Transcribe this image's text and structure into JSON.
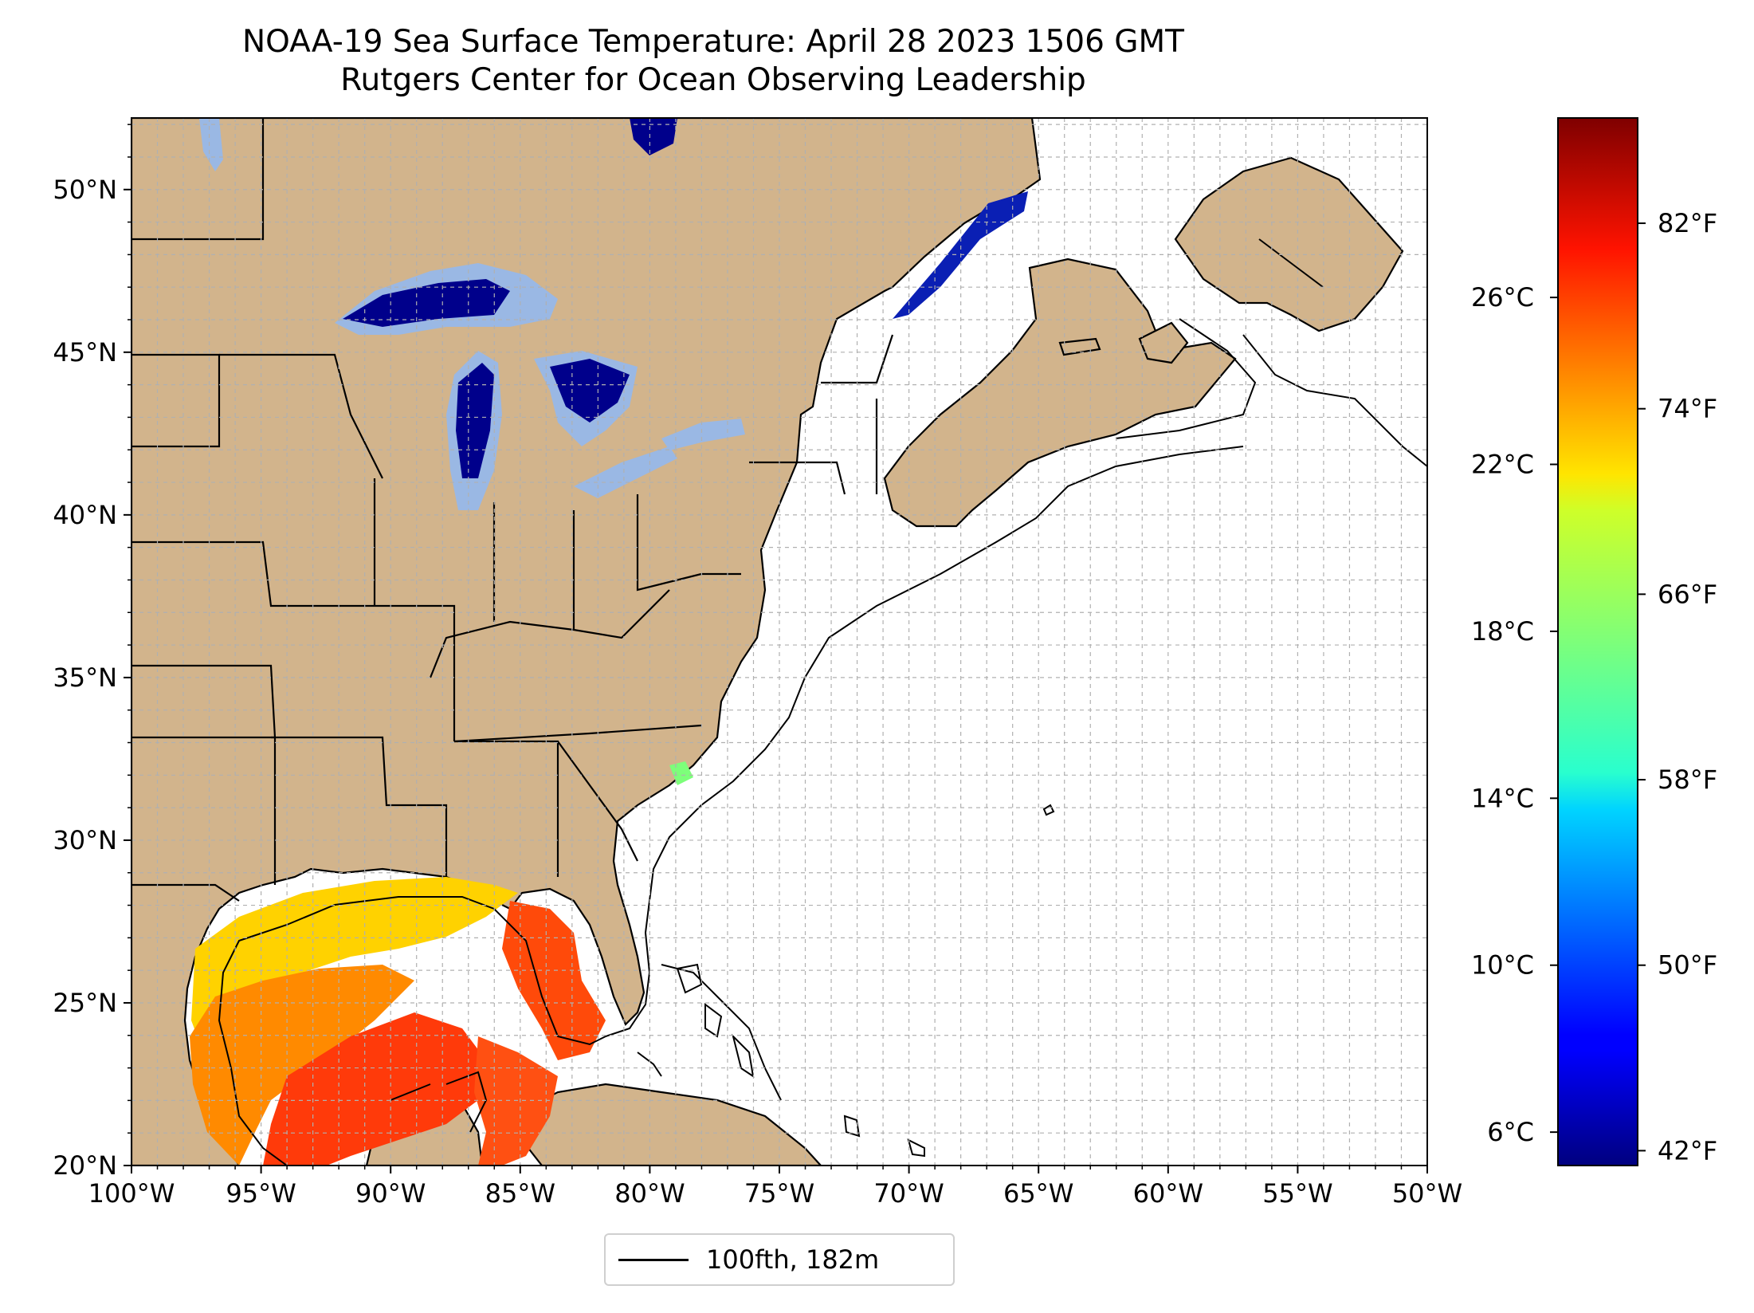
{
  "title_line1": "NOAA-19 Sea Surface Temperature: April 28 2023 1506 GMT",
  "title_line2": "Rutgers Center for Ocean Observing Leadership",
  "map": {
    "lon_range": [
      -100,
      -50
    ],
    "lat_range": [
      20,
      52.2
    ],
    "gridlines": "dashed, 1 degree",
    "x_ticks": [
      "100°W",
      "95°W",
      "90°W",
      "85°W",
      "80°W",
      "75°W",
      "70°W",
      "65°W",
      "60°W",
      "55°W",
      "50°W"
    ],
    "y_ticks": [
      "20°N",
      "25°N",
      "30°N",
      "35°N",
      "40°N",
      "45°N",
      "50°N"
    ],
    "colors": {
      "land": "#d2b48c",
      "lakes": "#9ab8e4",
      "ocean_no_data": "#ffffff",
      "coast": "#000000"
    }
  },
  "colorbar": {
    "colormap": "jet",
    "range_celsius": [
      5.2,
      30.3
    ],
    "celsius_ticks": [
      "6°C",
      "10°C",
      "14°C",
      "18°C",
      "22°C",
      "26°C"
    ],
    "fahrenheit_ticks": [
      "42°F",
      "50°F",
      "58°F",
      "66°F",
      "74°F",
      "82°F"
    ]
  },
  "legend": {
    "label": "100fth, 182m"
  }
}
